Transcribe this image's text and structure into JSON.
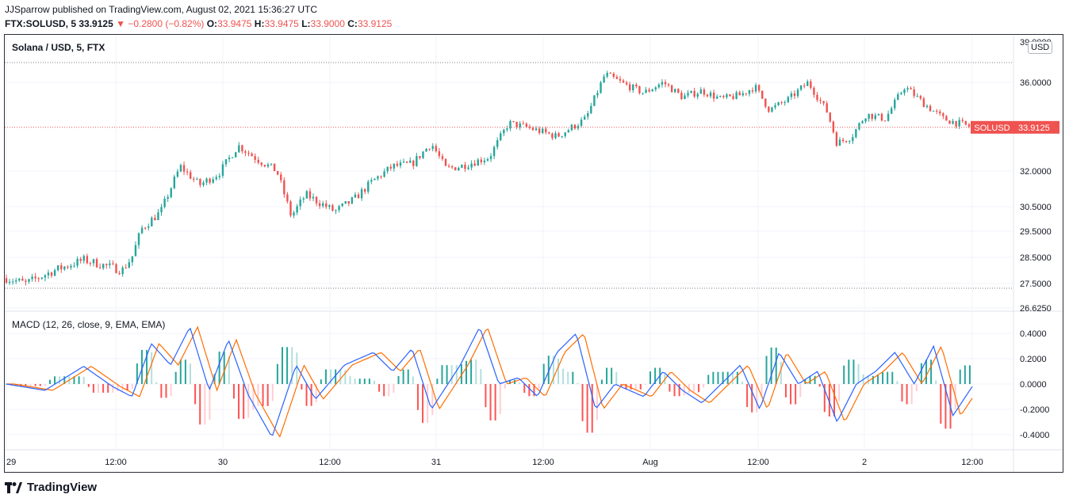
{
  "header": {
    "published": "JJSparrow published on TradingView.com, August 02, 2021 15:36:27 UTC",
    "symbol": "FTX:SOLUSD, 5",
    "price": "33.9125",
    "change": "▼ −0.2800 (−0.82%)",
    "o_label": "O:",
    "o": "33.9475",
    "h_label": "H:",
    "h": "33.9475",
    "l_label": "L:",
    "l": "33.9000",
    "c_label": "C:",
    "c": "33.9125"
  },
  "legend": {
    "price_title": "Solana / USD, 5, FTX",
    "macd_title": "MACD (12, 26, close, 9, EMA, EMA)",
    "currency": "USD"
  },
  "price_label": {
    "name": "SOLUSD",
    "value": "33.9125"
  },
  "footer": {
    "brand": "TradingView"
  },
  "colors": {
    "up": "#26a69a",
    "down": "#ef5350",
    "macd": "#2962ff",
    "signal": "#ff6d00",
    "hist_up_strong": "#26a69a",
    "hist_up_weak": "#b2dfdb",
    "hist_down_strong": "#ff5252",
    "hist_down_weak": "#ffcdd2"
  },
  "chart_data": [
    {
      "type": "candlestick",
      "title": "Solana / USD, 5, FTX",
      "y_ticks": [
        "36.0000",
        "32.0000",
        "30.5000",
        "29.5000",
        "28.5000",
        "27.5000",
        "26.6250"
      ],
      "y_tick_top_partial": "39.0000",
      "x_ticks": [
        "29",
        "12:00",
        "30",
        "12:00",
        "31",
        "12:00",
        "Aug",
        "12:00",
        "2",
        "12:00"
      ],
      "last_price": 33.9125,
      "key_points": [
        {
          "t": 0,
          "v": 27.7
        },
        {
          "t": 0.02,
          "v": 27.5
        },
        {
          "t": 0.05,
          "v": 28.0
        },
        {
          "t": 0.08,
          "v": 28.4
        },
        {
          "t": 0.1,
          "v": 28.2
        },
        {
          "t": 0.12,
          "v": 28.0
        },
        {
          "t": 0.13,
          "v": 28.5
        },
        {
          "t": 0.14,
          "v": 29.6
        },
        {
          "t": 0.16,
          "v": 30.3
        },
        {
          "t": 0.18,
          "v": 32.2
        },
        {
          "t": 0.2,
          "v": 31.4
        },
        {
          "t": 0.22,
          "v": 31.9
        },
        {
          "t": 0.24,
          "v": 33.1
        },
        {
          "t": 0.26,
          "v": 32.5
        },
        {
          "t": 0.28,
          "v": 32.0
        },
        {
          "t": 0.295,
          "v": 30.1
        },
        {
          "t": 0.31,
          "v": 31.0
        },
        {
          "t": 0.34,
          "v": 30.3
        },
        {
          "t": 0.36,
          "v": 30.8
        },
        {
          "t": 0.38,
          "v": 31.6
        },
        {
          "t": 0.4,
          "v": 32.2
        },
        {
          "t": 0.42,
          "v": 32.3
        },
        {
          "t": 0.44,
          "v": 33.2
        },
        {
          "t": 0.455,
          "v": 32.1
        },
        {
          "t": 0.47,
          "v": 32.2
        },
        {
          "t": 0.5,
          "v": 32.6
        },
        {
          "t": 0.52,
          "v": 34.1
        },
        {
          "t": 0.54,
          "v": 33.9
        },
        {
          "t": 0.57,
          "v": 33.5
        },
        {
          "t": 0.6,
          "v": 34.3
        },
        {
          "t": 0.62,
          "v": 36.4
        },
        {
          "t": 0.64,
          "v": 35.9
        },
        {
          "t": 0.66,
          "v": 35.5
        },
        {
          "t": 0.68,
          "v": 36.0
        },
        {
          "t": 0.7,
          "v": 35.3
        },
        {
          "t": 0.72,
          "v": 35.6
        },
        {
          "t": 0.74,
          "v": 35.2
        },
        {
          "t": 0.76,
          "v": 35.4
        },
        {
          "t": 0.775,
          "v": 35.8
        },
        {
          "t": 0.79,
          "v": 34.7
        },
        {
          "t": 0.81,
          "v": 35.2
        },
        {
          "t": 0.83,
          "v": 36.0
        },
        {
          "t": 0.85,
          "v": 34.6
        },
        {
          "t": 0.86,
          "v": 33.2
        },
        {
          "t": 0.875,
          "v": 33.5
        },
        {
          "t": 0.89,
          "v": 34.5
        },
        {
          "t": 0.91,
          "v": 34.3
        },
        {
          "t": 0.93,
          "v": 35.8
        },
        {
          "t": 0.95,
          "v": 35.0
        },
        {
          "t": 0.97,
          "v": 34.3
        },
        {
          "t": 1.0,
          "v": 33.9125
        }
      ]
    },
    {
      "type": "line",
      "title": "MACD (12, 26, close, 9, EMA, EMA)",
      "y_ticks": [
        "0.4000",
        "0.2000",
        "0.0000",
        "-0.2000",
        "-0.4000"
      ],
      "series": [
        {
          "name": "MACD",
          "key_points": [
            {
              "t": 0,
              "v": 0.0
            },
            {
              "t": 0.04,
              "v": -0.05
            },
            {
              "t": 0.08,
              "v": 0.14
            },
            {
              "t": 0.11,
              "v": -0.02
            },
            {
              "t": 0.13,
              "v": -0.1
            },
            {
              "t": 0.15,
              "v": 0.32
            },
            {
              "t": 0.17,
              "v": 0.15
            },
            {
              "t": 0.19,
              "v": 0.45
            },
            {
              "t": 0.21,
              "v": -0.05
            },
            {
              "t": 0.23,
              "v": 0.35
            },
            {
              "t": 0.25,
              "v": -0.08
            },
            {
              "t": 0.275,
              "v": -0.42
            },
            {
              "t": 0.3,
              "v": 0.15
            },
            {
              "t": 0.32,
              "v": -0.12
            },
            {
              "t": 0.35,
              "v": 0.15
            },
            {
              "t": 0.38,
              "v": 0.25
            },
            {
              "t": 0.4,
              "v": 0.1
            },
            {
              "t": 0.42,
              "v": 0.28
            },
            {
              "t": 0.44,
              "v": -0.2
            },
            {
              "t": 0.47,
              "v": 0.15
            },
            {
              "t": 0.49,
              "v": 0.45
            },
            {
              "t": 0.51,
              "v": 0.0
            },
            {
              "t": 0.53,
              "v": 0.05
            },
            {
              "t": 0.55,
              "v": -0.1
            },
            {
              "t": 0.57,
              "v": 0.25
            },
            {
              "t": 0.59,
              "v": 0.4
            },
            {
              "t": 0.61,
              "v": -0.2
            },
            {
              "t": 0.63,
              "v": 0.0
            },
            {
              "t": 0.66,
              "v": -0.1
            },
            {
              "t": 0.68,
              "v": 0.1
            },
            {
              "t": 0.7,
              "v": -0.05
            },
            {
              "t": 0.72,
              "v": -0.15
            },
            {
              "t": 0.74,
              "v": 0.0
            },
            {
              "t": 0.76,
              "v": 0.15
            },
            {
              "t": 0.78,
              "v": -0.2
            },
            {
              "t": 0.8,
              "v": 0.25
            },
            {
              "t": 0.82,
              "v": 0.0
            },
            {
              "t": 0.84,
              "v": 0.1
            },
            {
              "t": 0.86,
              "v": -0.3
            },
            {
              "t": 0.88,
              "v": 0.0
            },
            {
              "t": 0.9,
              "v": 0.1
            },
            {
              "t": 0.92,
              "v": 0.25
            },
            {
              "t": 0.94,
              "v": 0.0
            },
            {
              "t": 0.96,
              "v": 0.3
            },
            {
              "t": 0.98,
              "v": -0.25
            },
            {
              "t": 1.0,
              "v": -0.02
            }
          ]
        },
        {
          "name": "Signal",
          "lag": 0.008
        }
      ]
    }
  ]
}
